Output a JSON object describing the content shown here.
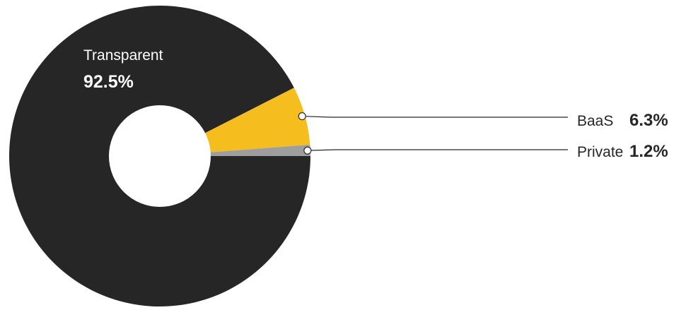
{
  "chart_data": {
    "type": "pie",
    "style": "donut",
    "slices": [
      {
        "label": "Transparent",
        "value": 92.5,
        "value_label": "92.5%",
        "color": "#262626"
      },
      {
        "label": "BaaS",
        "value": 6.3,
        "value_label": "6.3%",
        "color": "#F5BE1E"
      },
      {
        "label": "Private",
        "value": 1.2,
        "value_label": "1.2%",
        "color": "#9E9E9E"
      }
    ],
    "legend": "none",
    "annotations": "callout lines for small slices, inline label for largest slice"
  }
}
